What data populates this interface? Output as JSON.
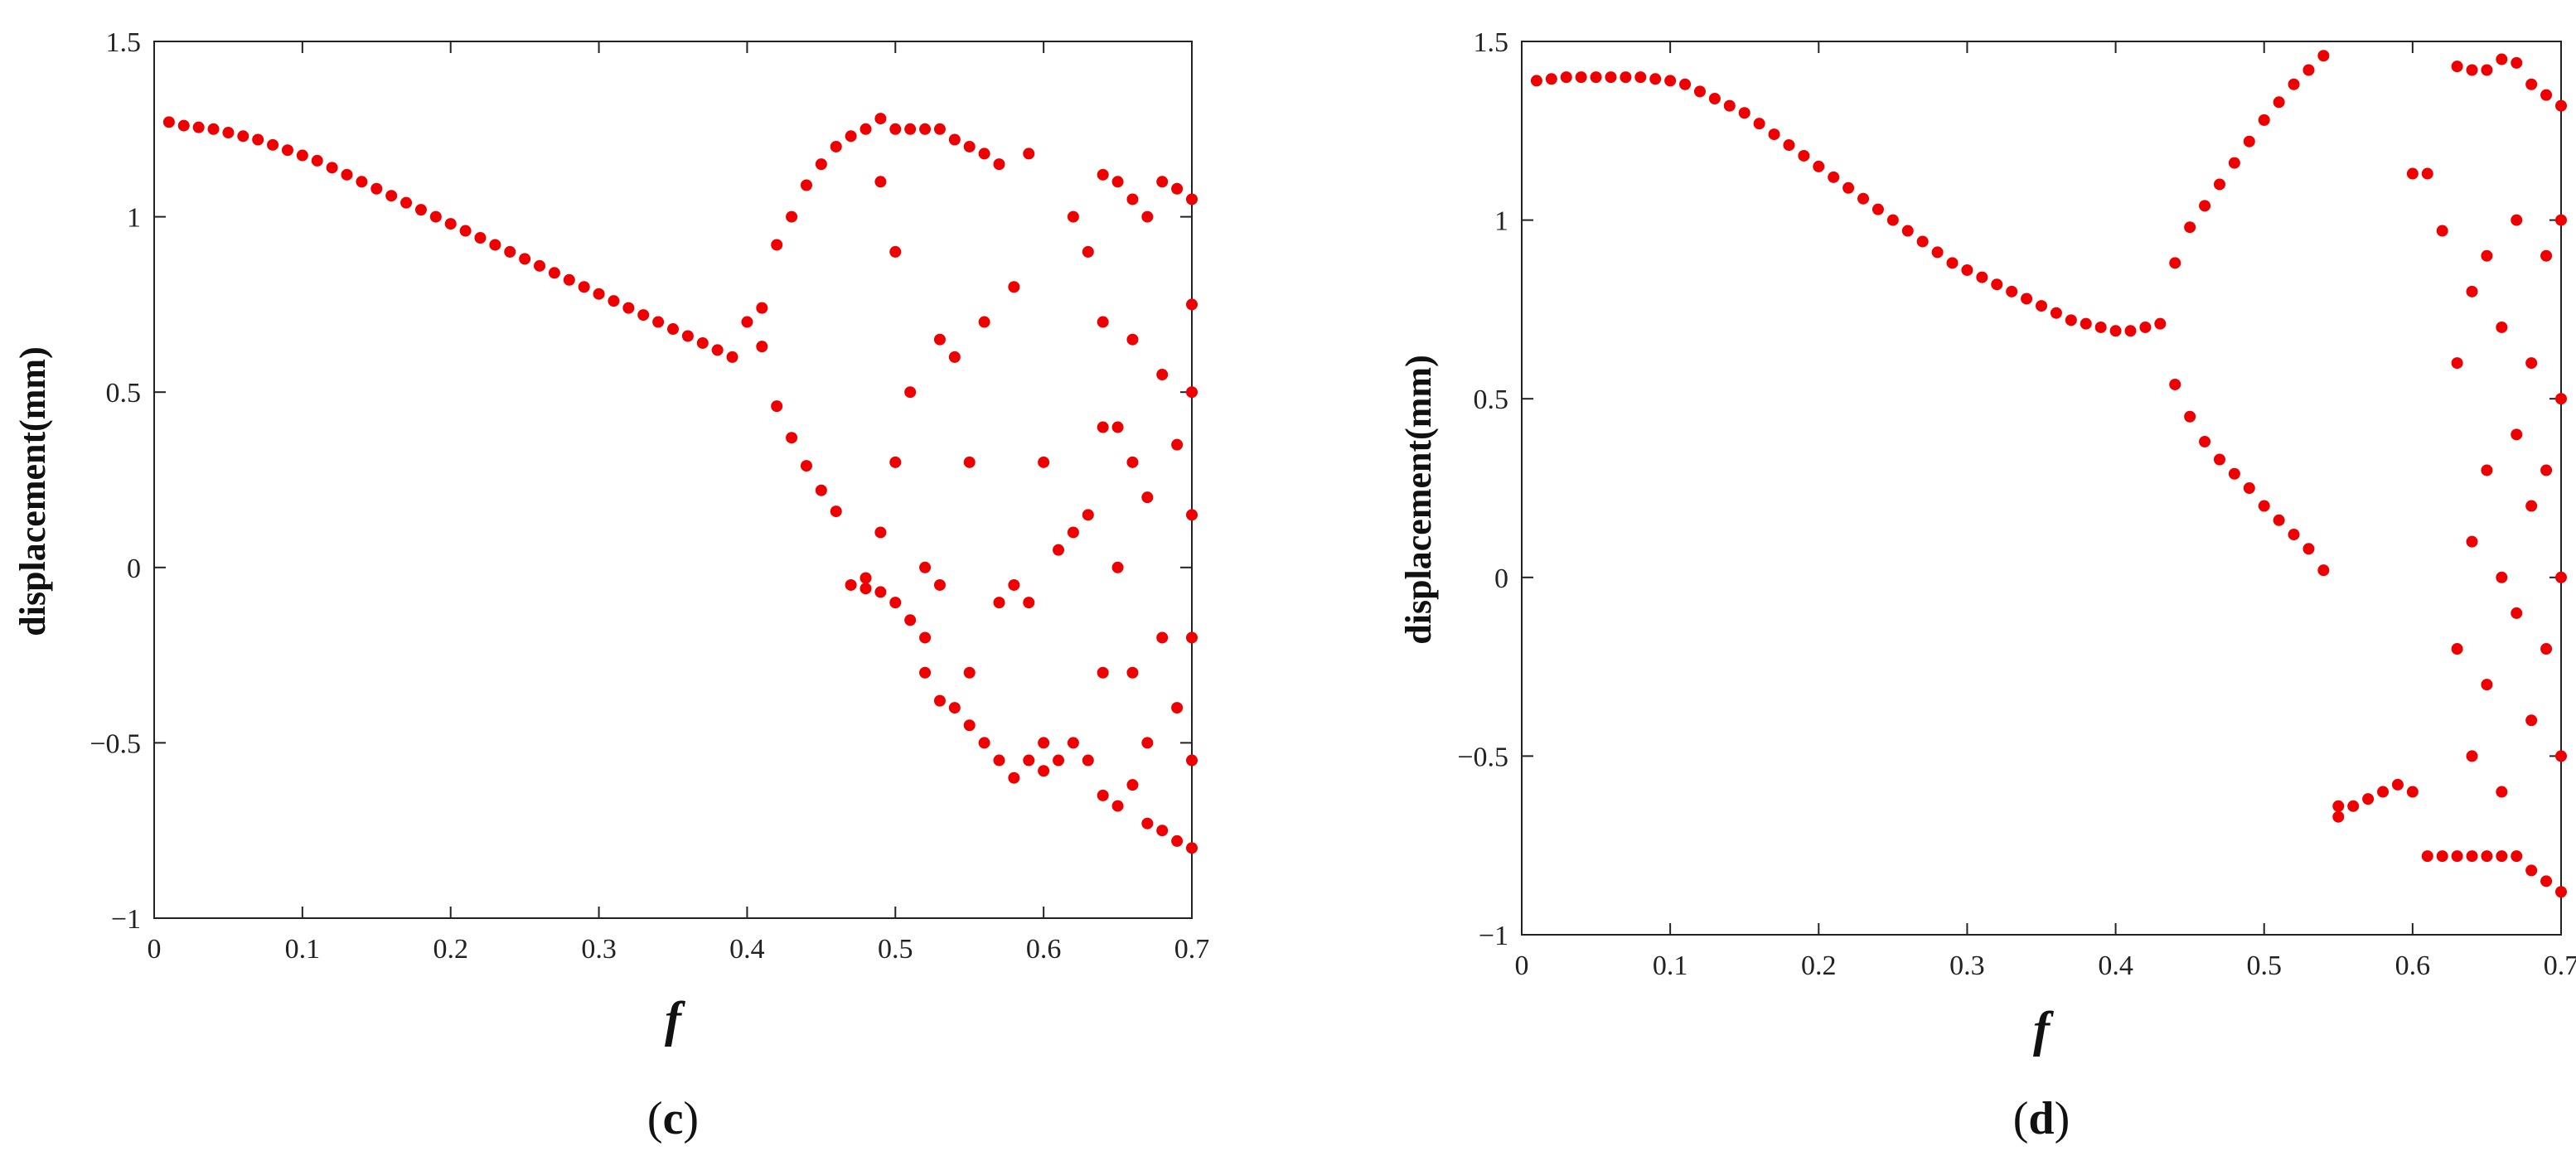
{
  "chart_data": [
    {
      "type": "scatter",
      "panel_label": "(c)",
      "panel_letter": "c",
      "xlabel": "f",
      "ylabel": "displacement(mm)",
      "xlim": [
        0,
        0.7
      ],
      "ylim": [
        -1,
        1.5
      ],
      "xticks": [
        "0",
        "0.1",
        "0.2",
        "0.3",
        "0.4",
        "0.5",
        "0.6",
        "0.7"
      ],
      "yticks": [
        "-1",
        "-0.5",
        "0",
        "0.5",
        "1",
        "1.5"
      ],
      "marker_color": "#ee0000",
      "x": [
        0.01,
        0.02,
        0.03,
        0.04,
        0.05,
        0.06,
        0.07,
        0.08,
        0.09,
        0.1,
        0.11,
        0.12,
        0.13,
        0.14,
        0.15,
        0.16,
        0.17,
        0.18,
        0.19,
        0.2,
        0.21,
        0.22,
        0.23,
        0.24,
        0.25,
        0.26,
        0.27,
        0.28,
        0.29,
        0.3,
        0.31,
        0.32,
        0.33,
        0.34,
        0.35,
        0.36,
        0.37,
        0.38,
        0.39,
        0.4,
        0.41,
        0.41,
        0.42,
        0.42,
        0.43,
        0.43,
        0.44,
        0.44,
        0.45,
        0.45,
        0.46,
        0.46,
        0.47,
        0.47,
        0.48,
        0.48,
        0.48,
        0.49,
        0.49,
        0.49,
        0.49,
        0.5,
        0.5,
        0.5,
        0.5,
        0.51,
        0.51,
        0.51,
        0.52,
        0.52,
        0.52,
        0.52,
        0.53,
        0.53,
        0.53,
        0.53,
        0.54,
        0.54,
        0.54,
        0.55,
        0.55,
        0.55,
        0.55,
        0.56,
        0.56,
        0.56,
        0.57,
        0.57,
        0.57,
        0.58,
        0.58,
        0.58,
        0.59,
        0.59,
        0.59,
        0.6,
        0.6,
        0.6,
        0.61,
        0.61,
        0.62,
        0.62,
        0.62,
        0.63,
        0.63,
        0.63,
        0.64,
        0.64,
        0.64,
        0.64,
        0.64,
        0.65,
        0.65,
        0.65,
        0.65,
        0.66,
        0.66,
        0.66,
        0.66,
        0.66,
        0.67,
        0.67,
        0.67,
        0.67,
        0.68,
        0.68,
        0.68,
        0.68,
        0.69,
        0.69,
        0.69,
        0.69,
        0.7,
        0.7,
        0.7,
        0.7,
        0.7,
        0.7,
        0.7
      ],
      "y": [
        1.27,
        1.26,
        1.255,
        1.25,
        1.24,
        1.23,
        1.22,
        1.205,
        1.19,
        1.175,
        1.16,
        1.14,
        1.12,
        1.1,
        1.08,
        1.06,
        1.04,
        1.02,
        1.0,
        0.98,
        0.96,
        0.94,
        0.92,
        0.9,
        0.88,
        0.86,
        0.84,
        0.82,
        0.8,
        0.78,
        0.76,
        0.74,
        0.72,
        0.7,
        0.68,
        0.66,
        0.64,
        0.62,
        0.6,
        0.7,
        0.74,
        0.63,
        0.92,
        0.46,
        1.0,
        0.37,
        1.09,
        0.29,
        1.15,
        0.22,
        1.2,
        0.16,
        1.23,
        -0.05,
        1.25,
        -0.03,
        -0.06,
        1.28,
        1.1,
        0.1,
        -0.07,
        1.25,
        0.9,
        0.3,
        -0.1,
        1.25,
        0.5,
        -0.15,
        1.25,
        0.0,
        -0.2,
        -0.3,
        1.25,
        0.65,
        -0.05,
        -0.38,
        1.22,
        0.6,
        -0.4,
        1.2,
        0.3,
        -0.3,
        -0.45,
        1.18,
        0.7,
        -0.5,
        1.15,
        -0.1,
        -0.55,
        0.8,
        -0.05,
        -0.6,
        1.18,
        -0.1,
        -0.55,
        0.3,
        -0.5,
        -0.58,
        0.05,
        -0.55,
        1.0,
        0.1,
        -0.5,
        0.9,
        0.15,
        -0.55,
        1.12,
        0.7,
        0.4,
        -0.3,
        -0.65,
        1.1,
        0.4,
        0.0,
        -0.68,
        1.05,
        0.65,
        0.3,
        -0.3,
        -0.62,
        1.0,
        0.2,
        -0.5,
        -0.73,
        1.1,
        0.55,
        -0.2,
        -0.75,
        1.08,
        0.35,
        -0.4,
        -0.78,
        1.05,
        0.75,
        0.5,
        0.15,
        -0.2,
        -0.55,
        -0.8
      ]
    },
    {
      "type": "scatter",
      "panel_label": "(d)",
      "panel_letter": "d",
      "xlabel": "f",
      "ylabel": "displacement(mm)",
      "xlim": [
        0,
        0.7
      ],
      "ylim": [
        -1,
        1.5
      ],
      "xticks": [
        "0",
        "0.1",
        "0.2",
        "0.3",
        "0.4",
        "0.5",
        "0.6",
        "0.7"
      ],
      "yticks": [
        "-1",
        "-0.5",
        "0",
        "0.5",
        "1",
        "1.5"
      ],
      "marker_color": "#ee0000",
      "x": [
        0.01,
        0.02,
        0.03,
        0.04,
        0.05,
        0.06,
        0.07,
        0.08,
        0.09,
        0.1,
        0.11,
        0.12,
        0.13,
        0.14,
        0.15,
        0.16,
        0.17,
        0.18,
        0.19,
        0.2,
        0.21,
        0.22,
        0.23,
        0.24,
        0.25,
        0.26,
        0.27,
        0.28,
        0.29,
        0.3,
        0.31,
        0.32,
        0.33,
        0.34,
        0.35,
        0.36,
        0.37,
        0.38,
        0.39,
        0.4,
        0.41,
        0.42,
        0.43,
        0.44,
        0.44,
        0.45,
        0.45,
        0.46,
        0.46,
        0.47,
        0.47,
        0.48,
        0.48,
        0.49,
        0.49,
        0.5,
        0.5,
        0.51,
        0.51,
        0.52,
        0.52,
        0.53,
        0.53,
        0.54,
        0.54,
        0.55,
        0.55,
        0.56,
        0.57,
        0.58,
        0.59,
        0.6,
        0.6,
        0.61,
        0.61,
        0.62,
        0.62,
        0.63,
        0.63,
        0.63,
        0.63,
        0.64,
        0.64,
        0.64,
        0.64,
        0.64,
        0.65,
        0.65,
        0.65,
        0.65,
        0.65,
        0.66,
        0.66,
        0.66,
        0.66,
        0.66,
        0.67,
        0.67,
        0.67,
        0.67,
        0.67,
        0.68,
        0.68,
        0.68,
        0.68,
        0.68,
        0.69,
        0.69,
        0.69,
        0.69,
        0.69,
        0.7,
        0.7,
        0.7,
        0.7,
        0.7,
        0.7
      ],
      "y": [
        1.39,
        1.395,
        1.4,
        1.4,
        1.4,
        1.4,
        1.4,
        1.4,
        1.395,
        1.39,
        1.38,
        1.36,
        1.34,
        1.32,
        1.3,
        1.27,
        1.24,
        1.21,
        1.18,
        1.15,
        1.12,
        1.09,
        1.06,
        1.03,
        1.0,
        0.97,
        0.94,
        0.91,
        0.88,
        0.86,
        0.84,
        0.82,
        0.8,
        0.78,
        0.76,
        0.74,
        0.72,
        0.71,
        0.7,
        0.69,
        0.69,
        0.7,
        0.71,
        0.88,
        0.54,
        0.98,
        0.45,
        1.04,
        0.38,
        1.1,
        0.33,
        1.16,
        0.29,
        1.22,
        0.25,
        1.28,
        0.2,
        1.33,
        0.16,
        1.38,
        0.12,
        1.42,
        0.08,
        1.46,
        0.02,
        -0.64,
        -0.67,
        -0.64,
        -0.62,
        -0.6,
        -0.58,
        1.13,
        -0.6,
        1.13,
        -0.78,
        0.97,
        -0.78,
        1.43,
        0.6,
        -0.2,
        -0.78,
        1.42,
        0.8,
        0.1,
        -0.5,
        -0.78,
        1.42,
        0.9,
        0.3,
        -0.3,
        -0.78,
        1.45,
        0.7,
        0.0,
        -0.6,
        -0.78,
        1.44,
        1.0,
        0.4,
        -0.1,
        -0.78,
        1.38,
        0.6,
        0.2,
        -0.4,
        -0.82,
        1.35,
        0.9,
        0.3,
        -0.2,
        -0.85,
        1.32,
        1.0,
        0.5,
        0.0,
        -0.5,
        -0.88
      ]
    }
  ]
}
